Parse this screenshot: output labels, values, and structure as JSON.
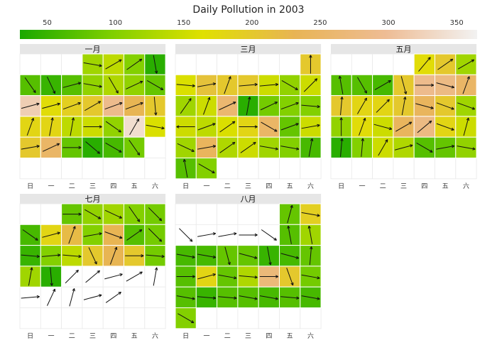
{
  "chart_data": {
    "type": "heatmap",
    "title": "Daily Pollution in 2003",
    "colorbar": {
      "ticks": [
        50,
        100,
        150,
        200,
        250,
        300,
        350
      ],
      "range": [
        30,
        365
      ],
      "colors": [
        "#1aa800",
        "#7fcf00",
        "#e0e000",
        "#e8b454",
        "#eebc94",
        "#f2f2f2"
      ]
    },
    "weekdays": [
      "日",
      "一",
      "二",
      "三",
      "四",
      "五",
      "六"
    ],
    "panels": [
      {
        "month": "一月",
        "days": [
          {
            "v": 120,
            "a": -10
          },
          {
            "v": 140,
            "a": 30
          },
          {
            "v": 100,
            "a": 35
          },
          {
            "v": 40,
            "a": -80
          },
          {
            "v": 70,
            "a": -55
          },
          {
            "v": 50,
            "a": -65
          },
          {
            "v": 70,
            "a": 15
          },
          {
            "v": 110,
            "a": -10
          },
          {
            "v": 130,
            "a": -60
          },
          {
            "v": 110,
            "a": 25
          },
          {
            "v": 80,
            "a": -30
          },
          {
            "v": 320,
            "a": 15
          },
          {
            "v": 170,
            "a": 15
          },
          {
            "v": 190,
            "a": 20
          },
          {
            "v": 200,
            "a": 30
          },
          {
            "v": 290,
            "a": 20
          },
          {
            "v": 230,
            "a": 20
          },
          {
            "v": 200,
            "a": -85
          },
          {
            "v": 180,
            "a": 70
          },
          {
            "v": 180,
            "a": 80
          },
          {
            "v": 140,
            "a": 80
          },
          {
            "v": 150,
            "a": 0
          },
          {
            "v": 110,
            "a": -35
          },
          {
            "v": 340,
            "a": 60
          },
          {
            "v": 160,
            "a": -10
          },
          {
            "v": 200,
            "a": 10
          },
          {
            "v": 250,
            "a": 25
          },
          {
            "v": 80,
            "a": 0
          },
          {
            "v": 40,
            "a": -40
          },
          {
            "v": 60,
            "a": -30
          },
          {
            "v": 90,
            "a": -55
          }
        ]
      },
      {
        "month": "三月",
        "days": [
          {
            "v": 200,
            "a": 90
          },
          {
            "v": 160,
            "a": -5
          },
          {
            "v": 210,
            "a": 10
          },
          {
            "v": 200,
            "a": 70
          },
          {
            "v": 200,
            "a": 5
          },
          {
            "v": 150,
            "a": 5
          },
          {
            "v": 110,
            "a": -30
          },
          {
            "v": 150,
            "a": 45
          },
          {
            "v": 120,
            "a": 55
          },
          {
            "v": 150,
            "a": 70
          },
          {
            "v": 260,
            "a": 25
          },
          {
            "v": 40,
            "a": 80
          },
          {
            "v": 90,
            "a": 25
          },
          {
            "v": 100,
            "a": 20
          },
          {
            "v": 100,
            "a": -5
          },
          {
            "v": 150,
            "a": 180
          },
          {
            "v": 140,
            "a": 20
          },
          {
            "v": 160,
            "a": 35
          },
          {
            "v": 180,
            "a": 0
          },
          {
            "v": 250,
            "a": -30
          },
          {
            "v": 80,
            "a": 20
          },
          {
            "v": 150,
            "a": 10
          },
          {
            "v": 120,
            "a": -25
          },
          {
            "v": 240,
            "a": 10
          },
          {
            "v": 130,
            "a": 35
          },
          {
            "v": 150,
            "a": 35
          },
          {
            "v": 120,
            "a": -10
          },
          {
            "v": 100,
            "a": -10
          },
          {
            "v": 60,
            "a": 80
          },
          {
            "v": 70,
            "a": 100
          },
          {
            "v": 100,
            "a": -30
          }
        ]
      },
      {
        "month": "五月",
        "days": [
          {
            "v": 170,
            "a": 50
          },
          {
            "v": 200,
            "a": 35
          },
          {
            "v": 120,
            "a": 30
          },
          {
            "v": 70,
            "a": 100
          },
          {
            "v": 70,
            "a": -60
          },
          {
            "v": 60,
            "a": 30
          },
          {
            "v": 200,
            "a": -75
          },
          {
            "v": 290,
            "a": 0
          },
          {
            "v": 280,
            "a": -15
          },
          {
            "v": 250,
            "a": 70
          },
          {
            "v": 200,
            "a": 85
          },
          {
            "v": 180,
            "a": 60
          },
          {
            "v": 180,
            "a": 45
          },
          {
            "v": 200,
            "a": 80
          },
          {
            "v": 240,
            "a": -15
          },
          {
            "v": 200,
            "a": -20
          },
          {
            "v": 120,
            "a": -20
          },
          {
            "v": 110,
            "a": 90
          },
          {
            "v": 170,
            "a": 70
          },
          {
            "v": 150,
            "a": -15
          },
          {
            "v": 240,
            "a": 30
          },
          {
            "v": 280,
            "a": 40
          },
          {
            "v": 180,
            "a": -20
          },
          {
            "v": 150,
            "a": 75
          },
          {
            "v": 40,
            "a": 85
          },
          {
            "v": 100,
            "a": 85
          },
          {
            "v": 150,
            "a": 60
          },
          {
            "v": 130,
            "a": 15
          },
          {
            "v": 70,
            "a": -30
          },
          {
            "v": 80,
            "a": 10
          },
          {
            "v": 110,
            "a": -10
          }
        ]
      },
      {
        "month": "七月",
        "days": [
          {
            "v": 80,
            "a": 0
          },
          {
            "v": 110,
            "a": -30
          },
          {
            "v": 120,
            "a": -25
          },
          {
            "v": 100,
            "a": -55
          },
          {
            "v": 90,
            "a": -45
          },
          {
            "v": 60,
            "a": -35
          },
          {
            "v": 180,
            "a": 15
          },
          {
            "v": 220,
            "a": 70
          },
          {
            "v": 100,
            "a": 10
          },
          {
            "v": 230,
            "a": -20
          },
          {
            "v": 70,
            "a": 35
          },
          {
            "v": 90,
            "a": -45
          },
          {
            "v": 50,
            "a": -5
          },
          {
            "v": 100,
            "a": 5
          },
          {
            "v": 140,
            "a": -5
          },
          {
            "v": 200,
            "a": -65
          },
          {
            "v": 230,
            "a": 70
          },
          {
            "v": 200,
            "a": 0
          },
          {
            "v": 90,
            "a": -5
          },
          {
            "v": 120,
            "a": 80
          },
          {
            "v": 40,
            "a": -85
          },
          {
            "v": -1,
            "a": 45
          },
          {
            "v": -1,
            "a": 40
          },
          {
            "v": -1,
            "a": 15
          },
          {
            "v": -1,
            "a": 30
          },
          {
            "v": -1,
            "a": 80
          },
          {
            "v": -1,
            "a": 5
          },
          {
            "v": -1,
            "a": 65
          },
          {
            "v": -1,
            "a": 75
          },
          {
            "v": -1,
            "a": 15
          },
          {
            "v": -1,
            "a": 35
          }
        ]
      },
      {
        "month": "八月",
        "days": [
          {
            "v": 80,
            "a": 75
          },
          {
            "v": 190,
            "a": -10
          },
          {
            "v": -1,
            "a": -45
          },
          {
            "v": -1,
            "a": 10
          },
          {
            "v": -1,
            "a": 10
          },
          {
            "v": -1,
            "a": 0
          },
          {
            "v": -1,
            "a": -35
          },
          {
            "v": 70,
            "a": 100
          },
          {
            "v": 120,
            "a": 100
          },
          {
            "v": 60,
            "a": -10
          },
          {
            "v": 60,
            "a": -10
          },
          {
            "v": 80,
            "a": -75
          },
          {
            "v": 80,
            "a": -15
          },
          {
            "v": 50,
            "a": -80
          },
          {
            "v": 60,
            "a": -15
          },
          {
            "v": 80,
            "a": 85
          },
          {
            "v": 70,
            "a": 0
          },
          {
            "v": 180,
            "a": 15
          },
          {
            "v": 80,
            "a": -10
          },
          {
            "v": 130,
            "a": -5
          },
          {
            "v": 270,
            "a": 0
          },
          {
            "v": 200,
            "a": -70
          },
          {
            "v": 90,
            "a": -10
          },
          {
            "v": 70,
            "a": -10
          },
          {
            "v": 50,
            "a": -5
          },
          {
            "v": 70,
            "a": -5
          },
          {
            "v": 70,
            "a": -10
          },
          {
            "v": 60,
            "a": -10
          },
          {
            "v": 70,
            "a": -5
          },
          {
            "v": 60,
            "a": -10
          },
          {
            "v": 100,
            "a": -30
          }
        ]
      }
    ]
  }
}
